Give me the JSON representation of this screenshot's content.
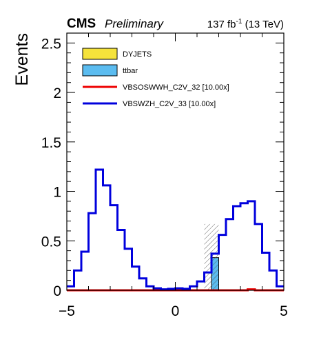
{
  "header": {
    "cms": "CMS",
    "preliminary": "Preliminary",
    "lumi_value": "137 fb",
    "lumi_exp": "-1",
    "lumi_energy": " (13 TeV)"
  },
  "chart_data": {
    "type": "histogram",
    "xlabel": "",
    "ylabel": "Events",
    "xlim": [
      -5,
      5
    ],
    "ylim": [
      0,
      2.6
    ],
    "x_ticks": [
      -5,
      0,
      5
    ],
    "y_ticks": [
      0,
      0.5,
      1,
      1.5,
      2,
      2.5
    ],
    "x_tick_labels": [
      "−5",
      "0",
      "5"
    ],
    "y_tick_labels": [
      "0",
      "0.5",
      "1",
      "1.5",
      "2",
      "2.5"
    ],
    "bin_edges": [
      -5.0,
      -4.6667,
      -4.3333,
      -4.0,
      -3.6667,
      -3.3333,
      -3.0,
      -2.6667,
      -2.3333,
      -2.0,
      -1.6667,
      -1.3333,
      -1.0,
      -0.6667,
      -0.3333,
      0.0,
      0.3333,
      0.6667,
      1.0,
      1.3333,
      1.6667,
      2.0,
      2.3333,
      2.6667,
      3.0,
      3.3333,
      3.6667,
      4.0,
      4.3333,
      4.6667,
      5.0
    ],
    "stacked": [
      {
        "name": "DYJETS",
        "color": "#f5e33b",
        "values": [
          0,
          0,
          0,
          0,
          0,
          0,
          0,
          0,
          0,
          0,
          0,
          0,
          0,
          0,
          0,
          0,
          0,
          0,
          0,
          0,
          0,
          0,
          0,
          0,
          0,
          0,
          0,
          0,
          0,
          0
        ]
      },
      {
        "name": "ttbar",
        "color": "#5bbcf0",
        "values": [
          0,
          0,
          0,
          0,
          0,
          0,
          0,
          0,
          0,
          0,
          0,
          0,
          0,
          0,
          0,
          0,
          0,
          0,
          0,
          0,
          0.33,
          0,
          0,
          0,
          0,
          0,
          0,
          0,
          0,
          0
        ]
      }
    ],
    "uncertainty": {
      "bins": [
        19,
        20
      ],
      "low": [
        0,
        0
      ],
      "high": [
        0.67,
        0.67
      ],
      "pattern": "hatched"
    },
    "lines": [
      {
        "name": "VBSOSWWH_C2V_32 [10.00x]",
        "color": "#ee0000",
        "values": [
          0,
          0,
          0,
          0,
          0,
          0,
          0,
          0,
          0,
          0,
          0,
          0,
          0,
          0,
          0,
          0,
          0,
          0,
          0,
          0,
          0,
          0,
          0,
          0,
          0,
          0.01,
          0,
          0,
          0,
          0
        ]
      },
      {
        "name": "VBSWZH_C2V_33 [10.00x]",
        "color": "#0000dd",
        "values": [
          0.04,
          0.2,
          0.39,
          0.78,
          1.22,
          1.06,
          0.86,
          0.61,
          0.42,
          0.24,
          0.12,
          0.04,
          0.02,
          0.01,
          0.015,
          0.02,
          0.015,
          0.04,
          0.09,
          0.18,
          0.37,
          0.56,
          0.72,
          0.85,
          0.88,
          0.9,
          0.67,
          0.38,
          0.2,
          0.04
        ]
      }
    ],
    "legend": {
      "position": "top-left",
      "entries": [
        {
          "label": "DYJETS",
          "kind": "box",
          "color": "#f5e33b"
        },
        {
          "label": "ttbar",
          "kind": "box",
          "color": "#5bbcf0"
        },
        {
          "label": "VBSOSWWH_C2V_32 [10.00x]",
          "kind": "line",
          "color": "#ee0000"
        },
        {
          "label": "VBSWZH_C2V_33 [10.00x]",
          "kind": "line",
          "color": "#0000dd"
        }
      ]
    }
  }
}
